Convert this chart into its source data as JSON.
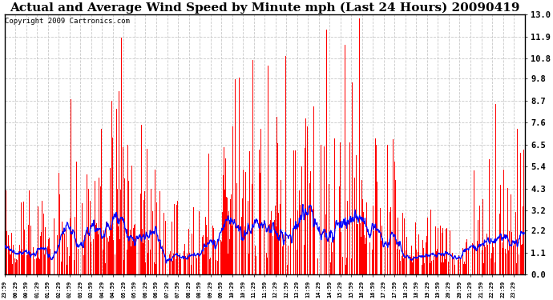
{
  "title": "Actual and Average Wind Speed by Minute mph (Last 24 Hours) 20090419",
  "copyright": "Copyright 2009 Cartronics.com",
  "yticks": [
    0.0,
    1.1,
    2.2,
    3.2,
    4.3,
    5.4,
    6.5,
    7.6,
    8.7,
    9.8,
    10.8,
    11.9,
    13.0
  ],
  "ylim": [
    0.0,
    13.0
  ],
  "bar_color": "#FF0000",
  "line_color": "#0000FF",
  "background_color": "#FFFFFF",
  "grid_color": "#C8C8C8",
  "title_fontsize": 11,
  "copyright_fontsize": 6.5,
  "n_minutes": 1440,
  "seed": 12345
}
